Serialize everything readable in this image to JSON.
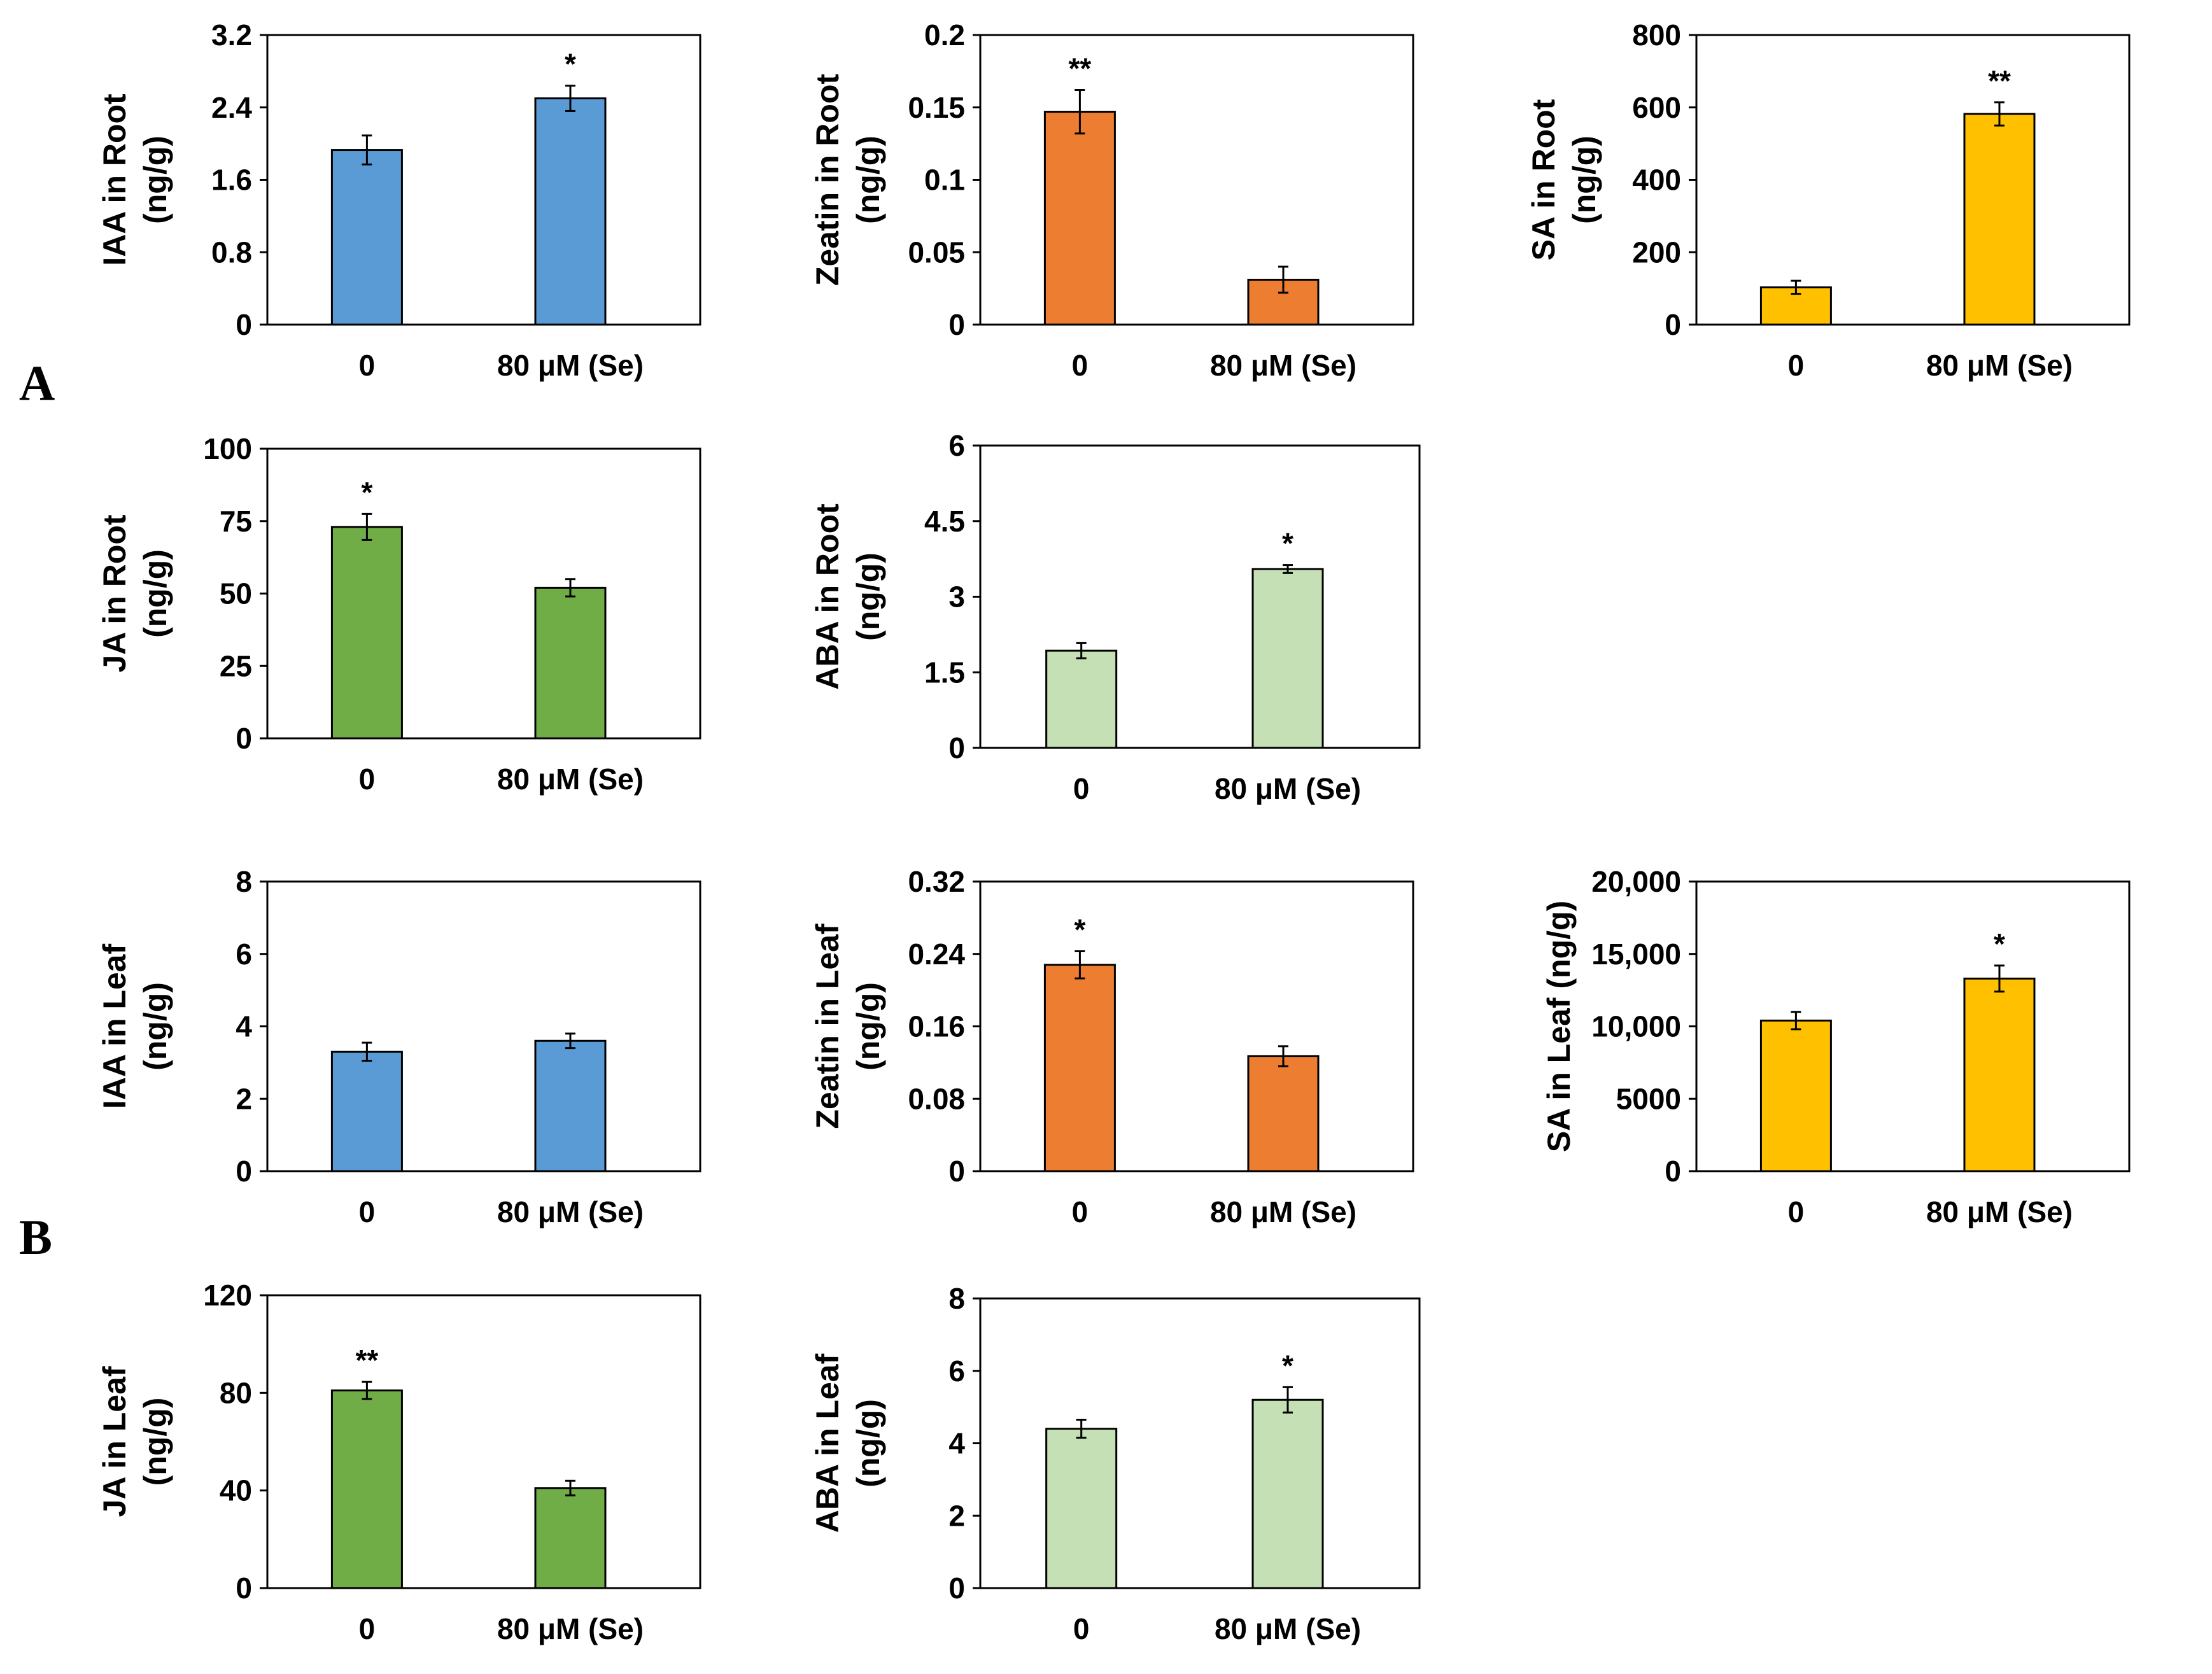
{
  "figure": {
    "panel_labels": {
      "a": "A",
      "b": "B"
    }
  },
  "chart_data": [
    {
      "type": "bar",
      "ylabel": "IAA in Root\n(ng/g)",
      "categories": [
        "0",
        "80 μM (Se)"
      ],
      "values": [
        1.93,
        2.5
      ],
      "errors": [
        0.16,
        0.14
      ],
      "significance": [
        "",
        "*"
      ],
      "ylim": [
        0,
        3.2
      ],
      "yticks": [
        "0",
        "0.8",
        "1.6",
        "2.4",
        "3.2"
      ],
      "color": "#5B9BD5"
    },
    {
      "type": "bar",
      "ylabel": "Zeatin in Root\n(ng/g)",
      "categories": [
        "0",
        "80 μM (Se)"
      ],
      "values": [
        0.147,
        0.031
      ],
      "errors": [
        0.015,
        0.009
      ],
      "significance": [
        "**",
        ""
      ],
      "ylim": [
        0,
        0.2
      ],
      "yticks": [
        "0",
        "0.05",
        "0.1",
        "0.15",
        "0.2"
      ],
      "color": "#ED7D31"
    },
    {
      "type": "bar",
      "ylabel": "SA in Root\n(ng/g)",
      "categories": [
        "0",
        "80 μM (Se)"
      ],
      "values": [
        103,
        582
      ],
      "errors": [
        18,
        32
      ],
      "significance": [
        "",
        "**"
      ],
      "ylim": [
        0,
        800
      ],
      "yticks": [
        "0",
        "200",
        "400",
        "600",
        "800"
      ],
      "color": "#FFC000"
    },
    {
      "type": "bar",
      "ylabel": "JA in Root\n(ng/g)",
      "categories": [
        "0",
        "80 μM (Se)"
      ],
      "values": [
        73,
        52
      ],
      "errors": [
        4.5,
        3
      ],
      "significance": [
        "*",
        ""
      ],
      "ylim": [
        0,
        100
      ],
      "yticks": [
        "0",
        "25",
        "50",
        "75",
        "100"
      ],
      "color": "#70AD47"
    },
    {
      "type": "bar",
      "ylabel": "ABA in Root\n(ng/g)",
      "categories": [
        "0",
        "80 μM (Se)"
      ],
      "values": [
        1.93,
        3.55
      ],
      "errors": [
        0.15,
        0.08
      ],
      "significance": [
        "",
        "*"
      ],
      "ylim": [
        0,
        6
      ],
      "yticks": [
        "0",
        "1.5",
        "3",
        "4.5",
        "6"
      ],
      "color": "#C5E0B4"
    },
    {
      "type": "bar",
      "ylabel": "IAA in Leaf\n(ng/g)",
      "categories": [
        "0",
        "80 μM (Se)"
      ],
      "values": [
        3.3,
        3.6
      ],
      "errors": [
        0.25,
        0.2
      ],
      "significance": [
        "",
        ""
      ],
      "ylim": [
        0,
        8
      ],
      "yticks": [
        "0",
        "2",
        "4",
        "6",
        "8"
      ],
      "color": "#5B9BD5"
    },
    {
      "type": "bar",
      "ylabel": "Zeatin in Leaf\n(ng/g)",
      "categories": [
        "0",
        "80 μM (Se)"
      ],
      "values": [
        0.228,
        0.127
      ],
      "errors": [
        0.015,
        0.011
      ],
      "significance": [
        "*",
        ""
      ],
      "ylim": [
        0,
        0.32
      ],
      "yticks": [
        "0",
        "0.08",
        "0.16",
        "0.24",
        "0.32"
      ],
      "color": "#ED7D31"
    },
    {
      "type": "bar",
      "ylabel": "SA in Leaf (ng/g)",
      "categories": [
        "0",
        "80 μM (Se)"
      ],
      "values": [
        10400,
        13300
      ],
      "errors": [
        600,
        900
      ],
      "significance": [
        "",
        "*"
      ],
      "ylim": [
        0,
        20000
      ],
      "yticks": [
        "0",
        "5000",
        "10,000",
        "15,000",
        "20,000"
      ],
      "color": "#FFC000"
    },
    {
      "type": "bar",
      "ylabel": "JA in Leaf\n(ng/g)",
      "categories": [
        "0",
        "80 μM (Se)"
      ],
      "values": [
        81,
        41
      ],
      "errors": [
        3.5,
        3
      ],
      "significance": [
        "**",
        ""
      ],
      "ylim": [
        0,
        120
      ],
      "yticks": [
        "0",
        "40",
        "80",
        "120"
      ],
      "color": "#70AD47"
    },
    {
      "type": "bar",
      "ylabel": "ABA in Leaf\n(ng/g)",
      "categories": [
        "0",
        "80 μM (Se)"
      ],
      "values": [
        4.4,
        5.2
      ],
      "errors": [
        0.25,
        0.35
      ],
      "significance": [
        "",
        "*"
      ],
      "ylim": [
        0,
        8
      ],
      "yticks": [
        "0",
        "2",
        "4",
        "6",
        "8"
      ],
      "color": "#C5E0B4"
    }
  ]
}
